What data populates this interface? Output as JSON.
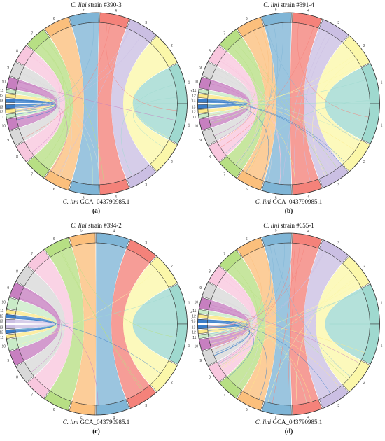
{
  "colors": {
    "outline": "#333333",
    "palette": [
      "#9fd9cf",
      "#fbf7a9",
      "#cbbfe3",
      "#f4827a",
      "#7fb5d6",
      "#fbbf7c",
      "#b7df84",
      "#f8c7de",
      "#d9d9d9",
      "#c77fc0",
      "#c9ebc7",
      "#fde98a",
      "#3a7dc9"
    ]
  },
  "panels": [
    {
      "id": "a",
      "label": "(a)",
      "strain_prefix": "C. lini",
      "strain_name": "strain #390-3",
      "reference_prefix": "C. lini",
      "reference_name": "GCA_043790985.1",
      "chromosomes": [
        {
          "label": "1",
          "color_index": 0,
          "weight": 11
        },
        {
          "label": "2",
          "color_index": 1,
          "weight": 9
        },
        {
          "label": "3",
          "color_index": 2,
          "weight": 8
        },
        {
          "label": "4",
          "color_index": 3,
          "weight": 8
        },
        {
          "label": "5",
          "color_index": 4,
          "weight": 8
        },
        {
          "label": "6",
          "color_index": 5,
          "weight": 7
        },
        {
          "label": "7",
          "color_index": 6,
          "weight": 6
        },
        {
          "label": "8",
          "color_index": 7,
          "weight": 5
        },
        {
          "label": "9",
          "color_index": 8,
          "weight": 4
        },
        {
          "label": "10",
          "color_index": 9,
          "weight": 3
        },
        {
          "label": "11",
          "color_index": 10,
          "weight": 1
        },
        {
          "label": "12",
          "color_index": 11,
          "weight": 1
        },
        {
          "label": "13",
          "color_index": 12,
          "weight": 1
        }
      ],
      "extra_top_labels": [
        "1.2",
        "1.1"
      ],
      "crossing_links": 26
    },
    {
      "id": "b",
      "label": "(b)",
      "strain_prefix": "C. lini",
      "strain_name": "strain #391-4",
      "reference_prefix": "C. lini",
      "reference_name": "GCA_043790985.1",
      "chromosomes": [
        {
          "label": "1",
          "color_index": 0,
          "weight": 11
        },
        {
          "label": "2",
          "color_index": 1,
          "weight": 9
        },
        {
          "label": "3",
          "color_index": 2,
          "weight": 8
        },
        {
          "label": "4",
          "color_index": 3,
          "weight": 8
        },
        {
          "label": "5",
          "color_index": 4,
          "weight": 8
        },
        {
          "label": "6",
          "color_index": 5,
          "weight": 7
        },
        {
          "label": "7",
          "color_index": 6,
          "weight": 6
        },
        {
          "label": "8",
          "color_index": 7,
          "weight": 5
        },
        {
          "label": "9",
          "color_index": 8,
          "weight": 4
        },
        {
          "label": "10",
          "color_index": 9,
          "weight": 3
        },
        {
          "label": "11",
          "color_index": 10,
          "weight": 1
        },
        {
          "label": "12",
          "color_index": 11,
          "weight": 1
        },
        {
          "label": "13",
          "color_index": 12,
          "weight": 1
        }
      ],
      "extra_top_labels": [],
      "crossing_links": 40
    },
    {
      "id": "c",
      "label": "(c)",
      "strain_prefix": "C. lini",
      "strain_name": "strain #394-2",
      "reference_prefix": "C. lini",
      "reference_name": "GCA_043790985.1",
      "chromosomes": [
        {
          "label": "1",
          "color_index": 0,
          "weight": 11
        },
        {
          "label": "2",
          "color_index": 1,
          "weight": 9
        },
        {
          "label": "3",
          "color_index": 3,
          "weight": 8
        },
        {
          "label": "4",
          "color_index": 4,
          "weight": 9
        },
        {
          "label": "5",
          "color_index": 5,
          "weight": 7
        },
        {
          "label": "6",
          "color_index": 6,
          "weight": 7
        },
        {
          "label": "7",
          "color_index": 7,
          "weight": 6
        },
        {
          "label": "8",
          "color_index": 8,
          "weight": 5
        },
        {
          "label": "9",
          "color_index": 9,
          "weight": 4
        },
        {
          "label": "10",
          "color_index": 10,
          "weight": 3
        },
        {
          "label": "11",
          "color_index": 11,
          "weight": 1
        },
        {
          "label": "12",
          "color_index": 12,
          "weight": 1
        },
        {
          "label": "13",
          "color_index": 2,
          "weight": 1
        }
      ],
      "extra_top_labels": [
        "2.2",
        "2.1"
      ],
      "crossing_links": 10
    },
    {
      "id": "d",
      "label": "(d)",
      "strain_prefix": "C. lini",
      "strain_name": "strain #655-1",
      "reference_prefix": "C. lini",
      "reference_name": "GCA_043790985.1",
      "chromosomes": [
        {
          "label": "1",
          "color_index": 0,
          "weight": 11
        },
        {
          "label": "2",
          "color_index": 1,
          "weight": 9
        },
        {
          "label": "3",
          "color_index": 2,
          "weight": 8
        },
        {
          "label": "4",
          "color_index": 3,
          "weight": 8
        },
        {
          "label": "5",
          "color_index": 4,
          "weight": 8
        },
        {
          "label": "6",
          "color_index": 5,
          "weight": 7
        },
        {
          "label": "7",
          "color_index": 6,
          "weight": 6
        },
        {
          "label": "8",
          "color_index": 7,
          "weight": 5
        },
        {
          "label": "9",
          "color_index": 8,
          "weight": 4
        },
        {
          "label": "10",
          "color_index": 9,
          "weight": 3
        },
        {
          "label": "11",
          "color_index": 10,
          "weight": 1
        },
        {
          "label": "12",
          "color_index": 11,
          "weight": 1
        },
        {
          "label": "13",
          "color_index": 12,
          "weight": 1
        }
      ],
      "extra_top_labels": [],
      "crossing_links": 44
    }
  ]
}
